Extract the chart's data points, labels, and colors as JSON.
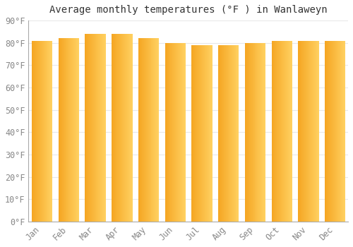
{
  "title": "Average monthly temperatures (°F ) in Wanlaweyn",
  "months": [
    "Jan",
    "Feb",
    "Mar",
    "Apr",
    "May",
    "Jun",
    "Jul",
    "Aug",
    "Sep",
    "Oct",
    "Nov",
    "Dec"
  ],
  "values": [
    81,
    82,
    84,
    84,
    82,
    80,
    79,
    79,
    80,
    81,
    81,
    81
  ],
  "ylim": [
    0,
    90
  ],
  "yticks": [
    0,
    10,
    20,
    30,
    40,
    50,
    60,
    70,
    80,
    90
  ],
  "bar_color_left": "#F5A623",
  "bar_color_right": "#FFD060",
  "bar_edge_color": "#C8860A",
  "background_color": "#FFFFFF",
  "plot_bg_color": "#FFFFFF",
  "grid_color": "#E8E8E8",
  "title_fontsize": 10,
  "tick_fontsize": 8.5,
  "tick_color": "#888888",
  "title_color": "#333333",
  "spine_color": "#AAAAAA"
}
